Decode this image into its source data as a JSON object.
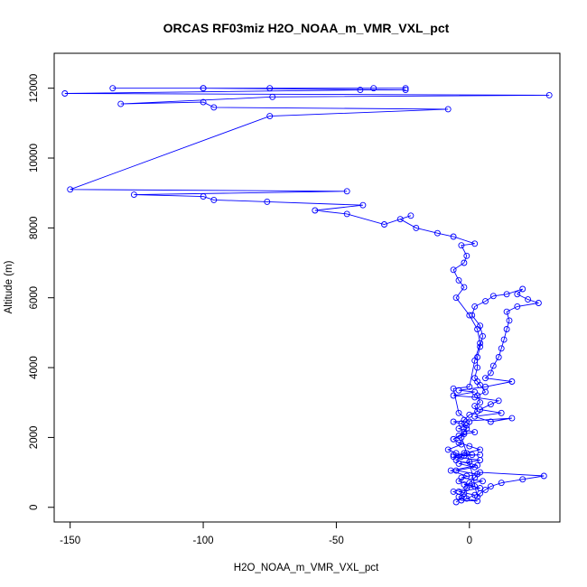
{
  "chart_data": {
    "type": "line",
    "title": "ORCAS RF03miz H2O_NOAA_m_VMR_VXL_pct",
    "xlabel": "H2O_NOAA_m_VMR_VXL_pct",
    "ylabel": "Altitude (m)",
    "xlim": [
      -156,
      34
    ],
    "ylim": [
      -420,
      13000
    ],
    "x_ticks": [
      -150,
      -100,
      -50,
      0
    ],
    "x_tick_labels": [
      "-150",
      "-100",
      "-50",
      "0"
    ],
    "y_ticks": [
      0,
      2000,
      4000,
      6000,
      8000,
      10000,
      12000
    ],
    "y_tick_labels": [
      "0",
      "2000",
      "4000",
      "6000",
      "8000",
      "10000",
      "12000"
    ],
    "line_color": "#0000ff",
    "markers": "open-circle",
    "grid": false,
    "series": [
      {
        "points": [
          [
            -5,
            150
          ],
          [
            -2,
            300
          ],
          [
            -6,
            450
          ],
          [
            2,
            600
          ],
          [
            -4,
            750
          ],
          [
            -1,
            900
          ],
          [
            -7,
            1050
          ],
          [
            3,
            1200
          ],
          [
            -5,
            1350
          ],
          [
            -3,
            1450
          ],
          [
            -6,
            1500
          ],
          [
            4,
            1500
          ],
          [
            -2,
            1480
          ],
          [
            -5,
            1550
          ],
          [
            -8,
            1650
          ],
          [
            -3,
            1800
          ],
          [
            -6,
            1950
          ],
          [
            -2,
            2100
          ],
          [
            2,
            2150
          ],
          [
            -4,
            2250
          ],
          [
            -1,
            2350
          ],
          [
            -6,
            2450
          ],
          [
            16,
            2550
          ],
          [
            8,
            2450
          ],
          [
            2,
            2600
          ],
          [
            12,
            2700
          ],
          [
            4,
            2800
          ],
          [
            8,
            2950
          ],
          [
            11,
            3050
          ],
          [
            2,
            3150
          ],
          [
            -6,
            3200
          ],
          [
            2,
            3300
          ],
          [
            -4,
            3350
          ],
          [
            6,
            3450
          ],
          [
            16,
            3600
          ],
          [
            6,
            3700
          ],
          [
            8,
            3850
          ],
          [
            9,
            4050
          ],
          [
            11,
            4300
          ],
          [
            12,
            4550
          ],
          [
            13,
            4800
          ],
          [
            14,
            5100
          ],
          [
            15,
            5350
          ],
          [
            14,
            5600
          ],
          [
            18,
            5750
          ],
          [
            26,
            5850
          ],
          [
            22,
            5950
          ],
          [
            18,
            6100
          ],
          [
            20,
            6250
          ],
          [
            14,
            6100
          ],
          [
            9,
            6050
          ],
          [
            6,
            5900
          ],
          [
            2,
            5750
          ],
          [
            1,
            5500
          ],
          [
            4,
            5200
          ],
          [
            5,
            4900
          ],
          [
            4,
            4600
          ],
          [
            3,
            4300
          ],
          [
            3,
            4000
          ],
          [
            2,
            3700
          ],
          [
            3,
            3600
          ],
          [
            4,
            3500
          ],
          [
            6,
            3300
          ],
          [
            3,
            3200
          ],
          [
            4,
            3000
          ],
          [
            2,
            2900
          ],
          [
            3,
            2750
          ],
          [
            0,
            2650
          ],
          [
            -2,
            2500
          ],
          [
            -3,
            2400
          ],
          [
            -1,
            2250
          ],
          [
            -2,
            2150
          ],
          [
            -4,
            2050
          ],
          [
            -6,
            1950
          ],
          [
            -4,
            1850
          ],
          [
            0,
            1750
          ],
          [
            4,
            1650
          ],
          [
            -2,
            1550
          ],
          [
            1,
            1500
          ],
          [
            -6,
            1450
          ],
          [
            4,
            1350
          ],
          [
            -4,
            1250
          ],
          [
            2,
            1150
          ],
          [
            -5,
            1050
          ],
          [
            3,
            950
          ],
          [
            -3,
            850
          ],
          [
            5,
            750
          ],
          [
            -2,
            650
          ],
          [
            4,
            550
          ],
          [
            -4,
            450
          ],
          [
            2,
            350
          ],
          [
            -1,
            250
          ],
          [
            3,
            180
          ],
          [
            -3,
            200
          ],
          [
            -4,
            300
          ],
          [
            -2,
            400
          ],
          [
            -1,
            550
          ],
          [
            0,
            700
          ],
          [
            2,
            850
          ],
          [
            4,
            1000
          ],
          [
            28,
            900
          ],
          [
            20,
            800
          ],
          [
            12,
            700
          ],
          [
            8,
            600
          ],
          [
            6,
            500
          ],
          [
            4,
            400
          ],
          [
            3,
            300
          ],
          [
            0,
            1300
          ],
          [
            -1,
            1550
          ],
          [
            -3,
            2000
          ],
          [
            0,
            2450
          ],
          [
            -4,
            2700
          ],
          [
            -6,
            3400
          ],
          [
            0,
            3450
          ],
          [
            2,
            4200
          ],
          [
            4,
            4700
          ],
          [
            3,
            5100
          ],
          [
            0,
            5500
          ],
          [
            -5,
            6000
          ],
          [
            -2,
            6300
          ],
          [
            -4,
            6500
          ],
          [
            -6,
            6800
          ],
          [
            -2,
            7000
          ],
          [
            -1,
            7200
          ],
          [
            -3,
            7500
          ],
          [
            2,
            7550
          ],
          [
            -6,
            7750
          ],
          [
            -12,
            7850
          ],
          [
            -20,
            8000
          ],
          [
            -26,
            8250
          ],
          [
            -22,
            8350
          ],
          [
            -32,
            8100
          ],
          [
            -46,
            8400
          ],
          [
            -58,
            8500
          ],
          [
            -40,
            8650
          ],
          [
            -76,
            8750
          ],
          [
            -96,
            8800
          ],
          [
            -100,
            8900
          ],
          [
            -126,
            8950
          ],
          [
            -46,
            9050
          ],
          [
            -150,
            9100
          ],
          [
            -75,
            11200
          ],
          [
            -8,
            11400
          ],
          [
            -96,
            11450
          ],
          [
            -100,
            11600
          ],
          [
            -131,
            11550
          ],
          [
            -74,
            11750
          ],
          [
            30,
            11800
          ],
          [
            -152,
            11850
          ],
          [
            -41,
            11950
          ],
          [
            -24,
            11950
          ],
          [
            -100,
            12000
          ],
          [
            -134,
            12000
          ],
          [
            -75,
            12000
          ],
          [
            -100,
            12000
          ],
          [
            -24,
            12000
          ],
          [
            -36,
            12000
          ]
        ]
      }
    ]
  }
}
